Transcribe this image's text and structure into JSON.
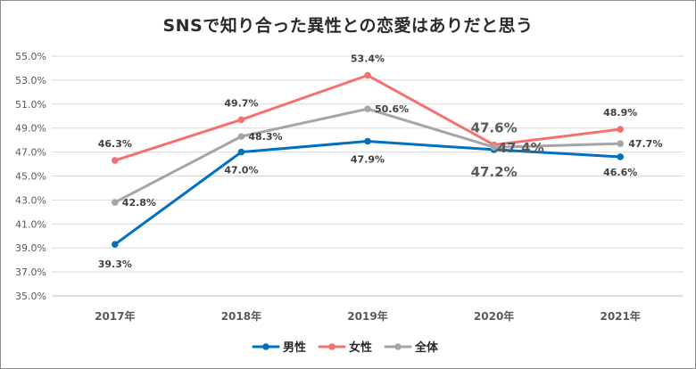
{
  "chart_data": {
    "type": "line",
    "title": "SNSで知り合った異性との恋愛はありだと思う",
    "categories": [
      "2017年",
      "2018年",
      "2019年",
      "2020年",
      "2021年"
    ],
    "ylim": [
      35.0,
      55.0
    ],
    "yticks": [
      "55.0%",
      "53.0%",
      "51.0%",
      "49.0%",
      "47.0%",
      "45.0%",
      "43.0%",
      "41.0%",
      "39.0%",
      "37.0%",
      "35.0%"
    ],
    "grid": true,
    "legend_position": "bottom",
    "series": [
      {
        "name": "男性",
        "color": "#0070c0",
        "values": [
          39.3,
          47.0,
          47.9,
          47.2,
          46.6
        ],
        "labels": [
          "39.3%",
          "47.0%",
          "47.9%",
          "47.2%",
          "46.6%"
        ]
      },
      {
        "name": "女性",
        "color": "#f4716f",
        "values": [
          46.3,
          49.7,
          53.4,
          47.6,
          48.9
        ],
        "labels": [
          "46.3%",
          "49.7%",
          "53.4%",
          "47.6%",
          "48.9%"
        ]
      },
      {
        "name": "全体",
        "color": "#a5a5a5",
        "values": [
          42.8,
          48.3,
          50.6,
          47.4,
          47.7
        ],
        "labels": [
          "42.8%",
          "48.3%",
          "50.6%",
          "47.4%",
          "47.7%"
        ]
      }
    ]
  }
}
